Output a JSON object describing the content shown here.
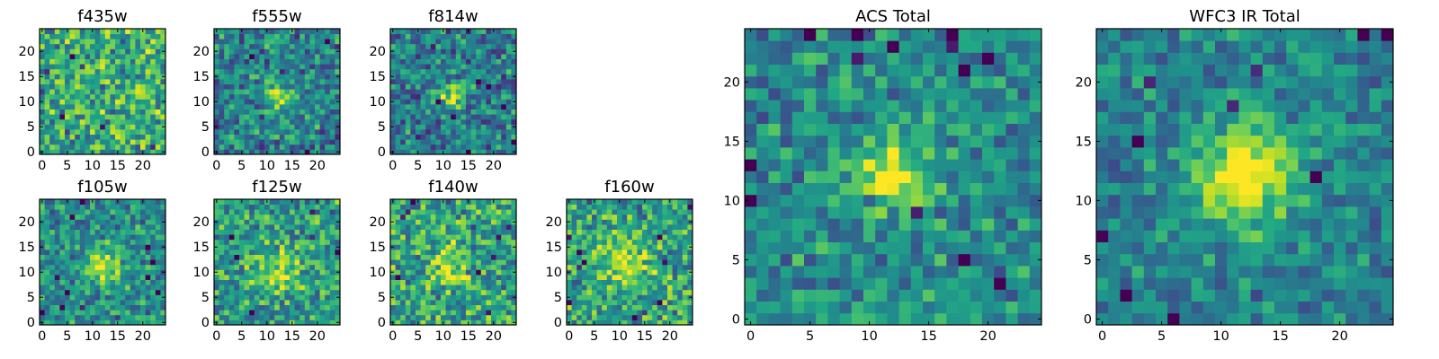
{
  "chart_data": [
    {
      "type": "heatmap",
      "title": "f435w",
      "xlim": [
        0,
        24
      ],
      "ylim": [
        0,
        24
      ],
      "xticks": [
        "0",
        "5",
        "10",
        "15",
        "20"
      ],
      "yticks": [
        "0",
        "5",
        "10",
        "15",
        "20"
      ],
      "colormap": "viridis",
      "source_pos": [
        12,
        12
      ],
      "source_strength": 0.05,
      "source_sigma": 2.5,
      "noise": 0.55,
      "base": 0.62
    },
    {
      "type": "heatmap",
      "title": "f555w",
      "xlim": [
        0,
        24
      ],
      "ylim": [
        0,
        24
      ],
      "xticks": [
        "0",
        "5",
        "10",
        "15",
        "20"
      ],
      "yticks": [
        "0",
        "5",
        "10",
        "15",
        "20"
      ],
      "colormap": "viridis",
      "source_pos": [
        12,
        11
      ],
      "source_strength": 0.35,
      "source_sigma": 2.0,
      "noise": 0.5,
      "base": 0.45
    },
    {
      "type": "heatmap",
      "title": "f814w",
      "xlim": [
        0,
        24
      ],
      "ylim": [
        0,
        24
      ],
      "xticks": [
        "0",
        "5",
        "10",
        "15",
        "20"
      ],
      "yticks": [
        "0",
        "5",
        "10",
        "15",
        "20"
      ],
      "colormap": "viridis",
      "source_pos": [
        12,
        11
      ],
      "source_strength": 0.5,
      "source_sigma": 1.8,
      "noise": 0.5,
      "base": 0.42
    },
    {
      "type": "heatmap",
      "title": "f105w",
      "xlim": [
        0,
        24
      ],
      "ylim": [
        0,
        24
      ],
      "xticks": [
        "0",
        "5",
        "10",
        "15",
        "20"
      ],
      "yticks": [
        "0",
        "5",
        "10",
        "15",
        "20"
      ],
      "colormap": "viridis",
      "source_pos": [
        12,
        11
      ],
      "source_strength": 0.45,
      "source_sigma": 2.5,
      "noise": 0.45,
      "base": 0.5
    },
    {
      "type": "heatmap",
      "title": "f125w",
      "xlim": [
        0,
        24
      ],
      "ylim": [
        0,
        24
      ],
      "xticks": [
        "0",
        "5",
        "10",
        "15",
        "20"
      ],
      "yticks": [
        "0",
        "5",
        "10",
        "15",
        "20"
      ],
      "colormap": "viridis",
      "source_pos": [
        12,
        10
      ],
      "source_strength": 0.35,
      "source_sigma": 3.0,
      "noise": 0.5,
      "base": 0.55
    },
    {
      "type": "heatmap",
      "title": "f140w",
      "xlim": [
        0,
        24
      ],
      "ylim": [
        0,
        24
      ],
      "xticks": [
        "0",
        "5",
        "10",
        "15",
        "20"
      ],
      "yticks": [
        "0",
        "5",
        "10",
        "15",
        "20"
      ],
      "colormap": "viridis",
      "source_pos": [
        12,
        11
      ],
      "source_strength": 0.3,
      "source_sigma": 3.0,
      "noise": 0.55,
      "base": 0.58
    },
    {
      "type": "heatmap",
      "title": "f160w",
      "xlim": [
        0,
        24
      ],
      "ylim": [
        0,
        24
      ],
      "xticks": [
        "0",
        "5",
        "10",
        "15",
        "20"
      ],
      "yticks": [
        "0",
        "5",
        "10",
        "15",
        "20"
      ],
      "colormap": "viridis",
      "source_pos": [
        11,
        12
      ],
      "source_strength": 0.35,
      "source_sigma": 3.2,
      "noise": 0.5,
      "base": 0.58
    },
    {
      "type": "heatmap",
      "title": "ACS Total",
      "xlim": [
        0,
        24
      ],
      "ylim": [
        0,
        24
      ],
      "xticks": [
        "0",
        "5",
        "10",
        "15",
        "20"
      ],
      "yticks": [
        "0",
        "5",
        "10",
        "15",
        "20"
      ],
      "colormap": "viridis",
      "source_pos": [
        12,
        12
      ],
      "source_strength": 0.55,
      "source_sigma": 2.0,
      "noise": 0.4,
      "base": 0.48
    },
    {
      "type": "heatmap",
      "title": "WFC3 IR Total",
      "xlim": [
        0,
        24
      ],
      "ylim": [
        0,
        24
      ],
      "xticks": [
        "0",
        "5",
        "10",
        "15",
        "20"
      ],
      "yticks": [
        "0",
        "5",
        "10",
        "15",
        "20"
      ],
      "colormap": "viridis",
      "source_pos": [
        12,
        12
      ],
      "source_strength": 0.55,
      "source_sigma": 3.0,
      "noise": 0.35,
      "base": 0.45
    }
  ]
}
